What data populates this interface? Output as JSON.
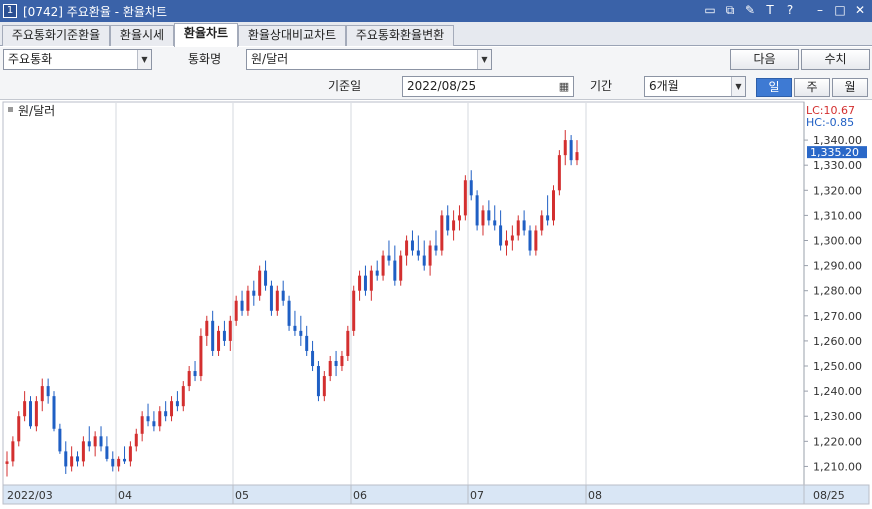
{
  "window": {
    "number": "1",
    "title": "[0742] 주요환율 - 환율차트",
    "icons": [
      "link-icon",
      "window-icon",
      "tool-icon",
      "text-icon",
      "question-icon",
      "minimize-icon",
      "maximize-icon",
      "close-icon"
    ]
  },
  "tabs": [
    {
      "label": "주요통화기준환율",
      "active": false
    },
    {
      "label": "환율시세",
      "active": false
    },
    {
      "label": "환율차트",
      "active": true
    },
    {
      "label": "환율상대비교차트",
      "active": false
    },
    {
      "label": "주요통화환율변환",
      "active": false
    }
  ],
  "controls": {
    "currency_group": "주요통화",
    "currency_label": "통화명",
    "currency_value": "원/달러",
    "next_button": "다음",
    "numeric_button": "수치",
    "base_date_label": "기준일",
    "base_date_value": "2022/08/25",
    "period_label": "기간",
    "period_value": "6개월",
    "interval_buttons": [
      {
        "label": "일",
        "active": true
      },
      {
        "label": "주",
        "active": false
      },
      {
        "label": "월",
        "active": false
      }
    ]
  },
  "chart_data": {
    "type": "candlestick",
    "series_label": "원/달러",
    "lc_label": "LC:10.67",
    "hc_label": "HC:-0.85",
    "current_value_label": "1,335.20",
    "current_value": 1335.2,
    "ylim": [
      1203,
      1348
    ],
    "y_ticks": [
      1210,
      1220,
      1230,
      1240,
      1250,
      1260,
      1270,
      1280,
      1290,
      1300,
      1310,
      1320,
      1330,
      1340
    ],
    "y_tick_labels": [
      "1,210.00",
      "1,220.00",
      "1,230.00",
      "1,240.00",
      "1,250.00",
      "1,260.00",
      "1,270.00",
      "1,280.00",
      "1,290.00",
      "1,300.00",
      "1,310.00",
      "1,320.00",
      "1,330.00",
      "1,340.00"
    ],
    "x_labels": [
      {
        "label": "2022/03",
        "index": 0
      },
      {
        "label": "04",
        "index": 19
      },
      {
        "label": "05",
        "index": 39
      },
      {
        "label": "06",
        "index": 59
      },
      {
        "label": "07",
        "index": 79
      },
      {
        "label": "08",
        "index": 99
      }
    ],
    "end_label": "08/25",
    "up_color": "#d32f2f",
    "down_color": "#1f5fc4",
    "candles": [
      [
        1211,
        1216,
        1206,
        1212
      ],
      [
        1212,
        1222,
        1210,
        1220
      ],
      [
        1220,
        1232,
        1218,
        1230
      ],
      [
        1230,
        1240,
        1228,
        1236
      ],
      [
        1236,
        1238,
        1225,
        1226
      ],
      [
        1226,
        1238,
        1224,
        1236
      ],
      [
        1236,
        1245,
        1232,
        1242
      ],
      [
        1242,
        1245,
        1235,
        1238
      ],
      [
        1238,
        1240,
        1224,
        1225
      ],
      [
        1225,
        1227,
        1215,
        1216
      ],
      [
        1216,
        1220,
        1207,
        1210
      ],
      [
        1210,
        1218,
        1208,
        1214
      ],
      [
        1214,
        1216,
        1210,
        1212
      ],
      [
        1212,
        1222,
        1210,
        1220
      ],
      [
        1220,
        1226,
        1216,
        1218
      ],
      [
        1218,
        1224,
        1214,
        1222
      ],
      [
        1222,
        1226,
        1216,
        1218
      ],
      [
        1218,
        1222,
        1212,
        1213
      ],
      [
        1213,
        1216,
        1208,
        1210
      ],
      [
        1210,
        1214,
        1208,
        1213
      ],
      [
        1213,
        1218,
        1211,
        1212
      ],
      [
        1212,
        1220,
        1210,
        1218
      ],
      [
        1218,
        1225,
        1216,
        1223
      ],
      [
        1223,
        1232,
        1220,
        1230
      ],
      [
        1230,
        1235,
        1226,
        1228
      ],
      [
        1228,
        1232,
        1224,
        1226
      ],
      [
        1226,
        1234,
        1224,
        1232
      ],
      [
        1232,
        1236,
        1228,
        1230
      ],
      [
        1230,
        1238,
        1228,
        1236
      ],
      [
        1236,
        1240,
        1232,
        1234
      ],
      [
        1234,
        1244,
        1232,
        1242
      ],
      [
        1242,
        1250,
        1240,
        1248
      ],
      [
        1248,
        1252,
        1244,
        1246
      ],
      [
        1246,
        1265,
        1244,
        1262
      ],
      [
        1262,
        1270,
        1258,
        1268
      ],
      [
        1268,
        1272,
        1254,
        1256
      ],
      [
        1256,
        1266,
        1254,
        1264
      ],
      [
        1264,
        1268,
        1258,
        1260
      ],
      [
        1260,
        1270,
        1256,
        1268
      ],
      [
        1268,
        1278,
        1266,
        1276
      ],
      [
        1276,
        1280,
        1270,
        1272
      ],
      [
        1272,
        1282,
        1270,
        1280
      ],
      [
        1280,
        1284,
        1274,
        1278
      ],
      [
        1278,
        1290,
        1276,
        1288
      ],
      [
        1288,
        1292,
        1280,
        1282
      ],
      [
        1282,
        1284,
        1270,
        1272
      ],
      [
        1272,
        1282,
        1270,
        1280
      ],
      [
        1280,
        1284,
        1274,
        1276
      ],
      [
        1276,
        1278,
        1264,
        1266
      ],
      [
        1266,
        1272,
        1262,
        1264
      ],
      [
        1264,
        1270,
        1258,
        1262
      ],
      [
        1262,
        1266,
        1254,
        1256
      ],
      [
        1256,
        1260,
        1248,
        1250
      ],
      [
        1250,
        1252,
        1236,
        1238
      ],
      [
        1238,
        1248,
        1236,
        1246
      ],
      [
        1246,
        1254,
        1244,
        1252
      ],
      [
        1252,
        1256,
        1246,
        1250
      ],
      [
        1250,
        1256,
        1248,
        1254
      ],
      [
        1254,
        1266,
        1252,
        1264
      ],
      [
        1264,
        1282,
        1262,
        1280
      ],
      [
        1280,
        1288,
        1276,
        1286
      ],
      [
        1286,
        1290,
        1278,
        1280
      ],
      [
        1280,
        1290,
        1276,
        1288
      ],
      [
        1288,
        1292,
        1284,
        1286
      ],
      [
        1286,
        1296,
        1284,
        1294
      ],
      [
        1294,
        1300,
        1290,
        1292
      ],
      [
        1292,
        1298,
        1282,
        1284
      ],
      [
        1284,
        1296,
        1282,
        1294
      ],
      [
        1294,
        1302,
        1290,
        1300
      ],
      [
        1300,
        1304,
        1294,
        1296
      ],
      [
        1296,
        1302,
        1292,
        1294
      ],
      [
        1294,
        1300,
        1288,
        1290
      ],
      [
        1290,
        1300,
        1286,
        1298
      ],
      [
        1298,
        1304,
        1294,
        1296
      ],
      [
        1296,
        1312,
        1294,
        1310
      ],
      [
        1310,
        1314,
        1302,
        1304
      ],
      [
        1304,
        1312,
        1300,
        1308
      ],
      [
        1308,
        1314,
        1304,
        1310
      ],
      [
        1310,
        1326,
        1308,
        1324
      ],
      [
        1324,
        1328,
        1316,
        1318
      ],
      [
        1318,
        1320,
        1304,
        1306
      ],
      [
        1306,
        1314,
        1302,
        1312
      ],
      [
        1312,
        1316,
        1306,
        1308
      ],
      [
        1308,
        1314,
        1304,
        1306
      ],
      [
        1306,
        1312,
        1296,
        1298
      ],
      [
        1298,
        1304,
        1294,
        1300
      ],
      [
        1300,
        1306,
        1296,
        1302
      ],
      [
        1302,
        1310,
        1300,
        1308
      ],
      [
        1308,
        1312,
        1302,
        1304
      ],
      [
        1304,
        1306,
        1294,
        1296
      ],
      [
        1296,
        1306,
        1294,
        1304
      ],
      [
        1304,
        1312,
        1302,
        1310
      ],
      [
        1310,
        1318,
        1306,
        1308
      ],
      [
        1308,
        1322,
        1306,
        1320
      ],
      [
        1320,
        1336,
        1318,
        1334
      ],
      [
        1334,
        1344,
        1330,
        1340
      ],
      [
        1340,
        1342,
        1330,
        1332
      ],
      [
        1332,
        1340,
        1330,
        1335.2
      ]
    ]
  }
}
